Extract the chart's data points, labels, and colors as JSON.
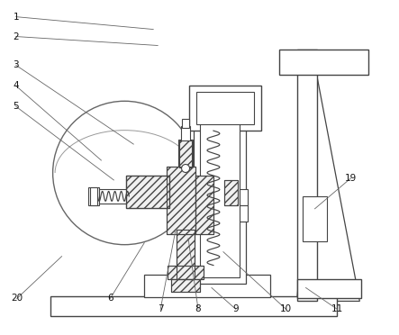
{
  "bg_color": "#ffffff",
  "ec": "#444444",
  "lw": 0.8,
  "figsize": [
    4.43,
    3.72
  ],
  "dpi": 100,
  "labels": [
    [
      1,
      17,
      18,
      170,
      32
    ],
    [
      2,
      17,
      40,
      175,
      50
    ],
    [
      3,
      17,
      72,
      148,
      160
    ],
    [
      4,
      17,
      95,
      112,
      178
    ],
    [
      5,
      17,
      118,
      126,
      200
    ],
    [
      6,
      122,
      332,
      160,
      270
    ],
    [
      7,
      178,
      344,
      195,
      255
    ],
    [
      8,
      220,
      344,
      209,
      265
    ],
    [
      9,
      262,
      344,
      235,
      320
    ],
    [
      10,
      318,
      344,
      248,
      280
    ],
    [
      11,
      375,
      344,
      340,
      320
    ],
    [
      19,
      390,
      198,
      350,
      232
    ],
    [
      20,
      18,
      332,
      68,
      285
    ]
  ]
}
